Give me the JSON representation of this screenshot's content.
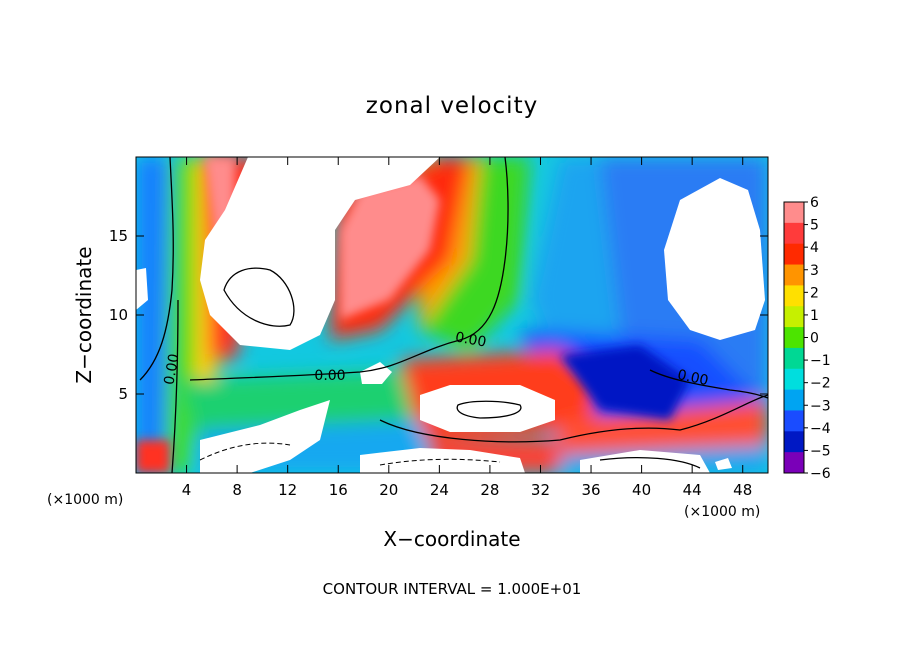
{
  "chart_data": {
    "type": "heatmap",
    "title": "zonal velocity",
    "xlabel": "X−coordinate",
    "ylabel": "Z−coordinate",
    "x_unit_left": "(×1000 m)",
    "x_unit_right": "(×1000 m)",
    "xlim": [
      0,
      50
    ],
    "ylim": [
      0,
      20
    ],
    "x_ticks": [
      4,
      8,
      12,
      16,
      20,
      24,
      28,
      32,
      36,
      40,
      44,
      48
    ],
    "y_ticks": [
      5,
      10,
      15
    ],
    "colorbar": {
      "range": [
        -6,
        6
      ],
      "tick_labels": [
        "6",
        "5",
        "4",
        "3",
        "2",
        "1",
        "0",
        "−1",
        "−2",
        "−3",
        "−4",
        "−5",
        "−6"
      ],
      "colors": [
        "#ff8c8c",
        "#ff3b3b",
        "#ff2a00",
        "#ff9400",
        "#ffe000",
        "#c6f000",
        "#4ce400",
        "#00d894",
        "#00dede",
        "#00a4f2",
        "#1a4cff",
        "#0018c4",
        "#7a00b8"
      ]
    },
    "contour_labels": [
      "0.00",
      "0.00",
      "0.00",
      "0.00"
    ],
    "footer": "CONTOUR INTERVAL = 1.000E+01"
  }
}
